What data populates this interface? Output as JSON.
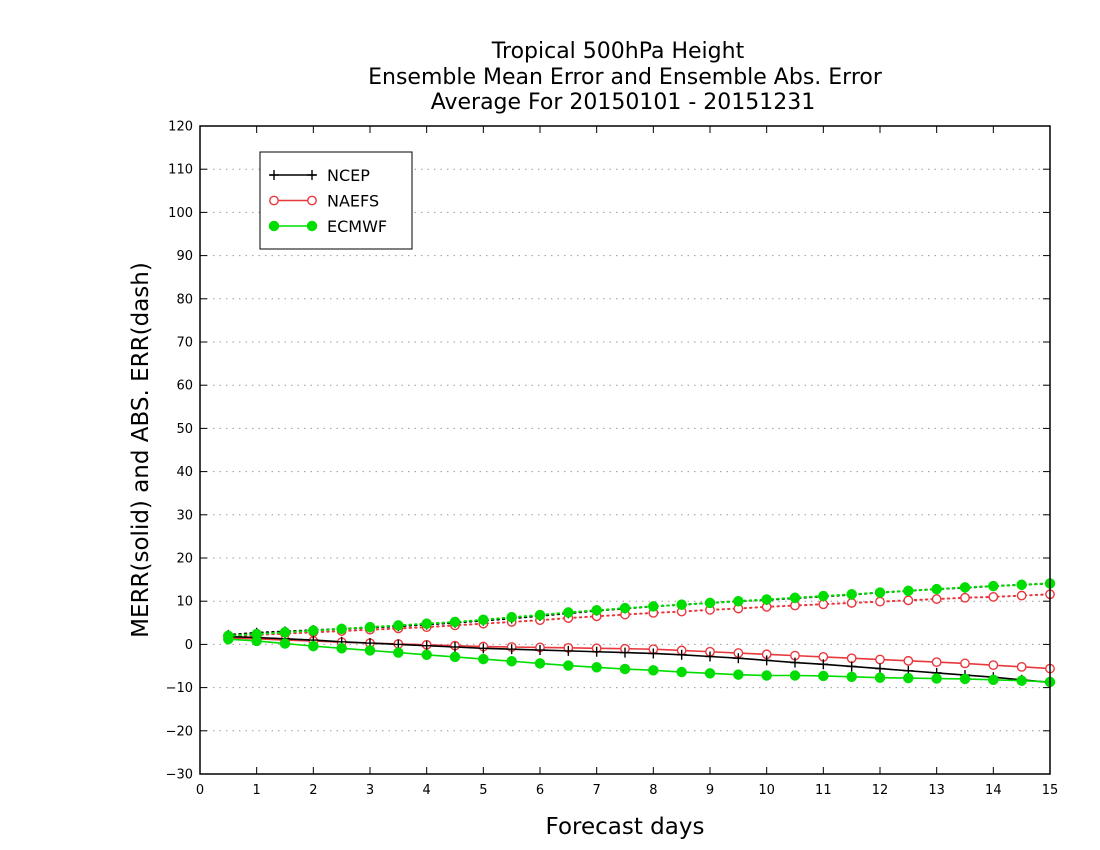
{
  "chart_data": {
    "type": "line",
    "title": [
      "Tropical 500hPa Height",
      "Ensemble Mean Error and Ensemble Abs. Error",
      "Average For 20150101 - 20151231"
    ],
    "xlabel": "Forecast days",
    "ylabel": "MERR(solid) and ABS. ERR(dash)",
    "xlim": [
      0,
      15
    ],
    "ylim": [
      -30,
      120
    ],
    "xticks": [
      0,
      1,
      2,
      3,
      4,
      5,
      6,
      7,
      8,
      9,
      10,
      11,
      12,
      13,
      14,
      15
    ],
    "yticks": [
      -30,
      -20,
      -10,
      0,
      10,
      20,
      30,
      40,
      50,
      60,
      70,
      80,
      90,
      100,
      110,
      120
    ],
    "grid": "horizontal-dotted",
    "legend_position": "top-left",
    "x": [
      0.5,
      1,
      1.5,
      2,
      2.5,
      3,
      3.5,
      4,
      4.5,
      5,
      5.5,
      6,
      6.5,
      7,
      7.5,
      8,
      8.5,
      9,
      9.5,
      10,
      10.5,
      11,
      11.5,
      12,
      12.5,
      13,
      13.5,
      14,
      14.5,
      15
    ],
    "series": [
      {
        "name": "NCEP",
        "color": "#000000",
        "marker": "plus",
        "merr": [
          1.8,
          1.6,
          1.3,
          1.0,
          0.6,
          0.3,
          0.0,
          -0.3,
          -0.6,
          -0.9,
          -1.1,
          -1.3,
          -1.5,
          -1.7,
          -1.9,
          -2.1,
          -2.4,
          -2.8,
          -3.2,
          -3.7,
          -4.2,
          -4.6,
          -5.1,
          -5.6,
          -6.1,
          -6.6,
          -7.1,
          -7.6,
          -8.2,
          -8.8
        ],
        "abserr": [
          2.2,
          2.7,
          3.0,
          3.3,
          3.6,
          3.9,
          4.2,
          4.6,
          5.0,
          5.5,
          6.0,
          6.6,
          7.2,
          7.8,
          8.3,
          8.8,
          9.2,
          9.6,
          10.0,
          10.3,
          10.7,
          11.1,
          11.5,
          12.0,
          12.4,
          12.8,
          13.1,
          13.5,
          13.8,
          14.1
        ]
      },
      {
        "name": "NAEFS",
        "color": "#e8383d",
        "marker": "open-circle",
        "merr": [
          1.5,
          1.3,
          1.0,
          0.8,
          0.5,
          0.3,
          0.1,
          -0.1,
          -0.3,
          -0.5,
          -0.6,
          -0.7,
          -0.8,
          -0.9,
          -1.0,
          -1.1,
          -1.4,
          -1.7,
          -2.0,
          -2.3,
          -2.6,
          -2.9,
          -3.2,
          -3.5,
          -3.8,
          -4.1,
          -4.4,
          -4.8,
          -5.2,
          -5.6
        ],
        "abserr": [
          1.8,
          2.2,
          2.5,
          2.8,
          3.1,
          3.4,
          3.7,
          4.0,
          4.4,
          4.8,
          5.2,
          5.6,
          6.1,
          6.5,
          6.9,
          7.3,
          7.6,
          8.0,
          8.3,
          8.7,
          9.0,
          9.3,
          9.6,
          9.9,
          10.2,
          10.5,
          10.8,
          11.0,
          11.3,
          11.6
        ]
      },
      {
        "name": "ECMWF",
        "color": "#00dd00",
        "marker": "filled-circle",
        "merr": [
          1.2,
          0.8,
          0.2,
          -0.4,
          -0.9,
          -1.4,
          -1.9,
          -2.4,
          -2.9,
          -3.4,
          -3.9,
          -4.4,
          -4.9,
          -5.3,
          -5.7,
          -6.0,
          -6.4,
          -6.7,
          -7.0,
          -7.2,
          -7.2,
          -7.3,
          -7.5,
          -7.7,
          -7.8,
          -7.9,
          -8.0,
          -8.2,
          -8.4,
          -8.7
        ],
        "abserr": [
          2.0,
          2.4,
          2.8,
          3.2,
          3.6,
          4.0,
          4.4,
          4.8,
          5.2,
          5.7,
          6.3,
          6.8,
          7.4,
          7.9,
          8.4,
          8.8,
          9.2,
          9.6,
          10.0,
          10.4,
          10.8,
          11.2,
          11.6,
          12.0,
          12.4,
          12.8,
          13.2,
          13.5,
          13.8,
          14.1
        ]
      }
    ]
  }
}
